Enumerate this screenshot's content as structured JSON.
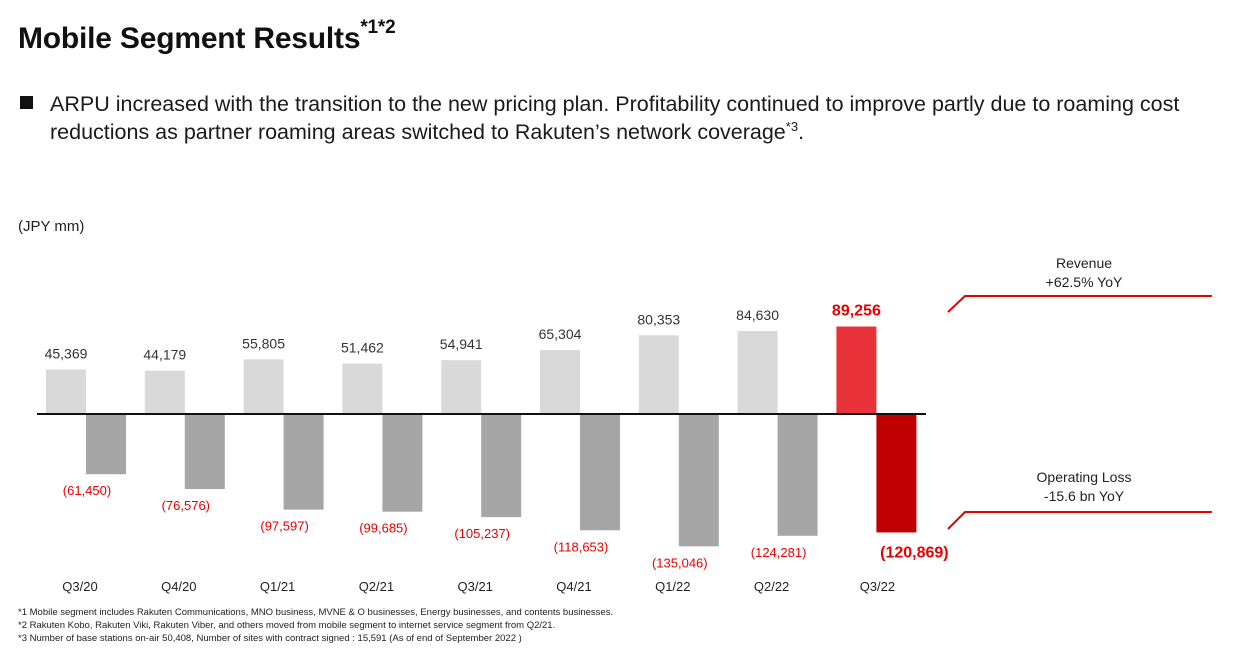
{
  "title": {
    "text": "Mobile Segment Results",
    "superscript": "*1*2"
  },
  "bullet": {
    "text": "ARPU increased with the transition to the new pricing plan. Profitability continued to improve partly due to roaming cost reductions as partner roaming areas switched to Rakuten’s network coverage",
    "superscript": "*3",
    "suffix": "."
  },
  "unit_label": "(JPY mm)",
  "colors": {
    "revenue_bar": "#d9d9d9",
    "loss_bar": "#a6a6a6",
    "highlight_revenue": "#e8333a",
    "highlight_loss": "#c00000",
    "loss_label": "#e60000",
    "axis": "#111111",
    "callout_line": "#e60000"
  },
  "callouts": {
    "revenue": {
      "line1": "Revenue",
      "line2": "+62.5% YoY"
    },
    "loss": {
      "line1": "Operating Loss",
      "line2": "-15.6 bn YoY"
    }
  },
  "chart_data": {
    "type": "bar",
    "categories": [
      "Q3/20",
      "Q4/20",
      "Q1/21",
      "Q2/21",
      "Q3/21",
      "Q4/21",
      "Q1/22",
      "Q2/22",
      "Q3/22"
    ],
    "series": [
      {
        "name": "Revenue",
        "values": [
          45369,
          44179,
          55805,
          51462,
          54941,
          65304,
          80353,
          84630,
          89256
        ],
        "labels": [
          "45,369",
          "44,179",
          "55,805",
          "51,462",
          "54,941",
          "65,304",
          "80,353",
          "84,630",
          "89,256"
        ]
      },
      {
        "name": "Operating Loss",
        "values": [
          -61450,
          -76576,
          -97597,
          -99685,
          -105237,
          -118653,
          -135046,
          -124281,
          -120869
        ],
        "labels": [
          "(61,450)",
          "(76,576)",
          "(97,597)",
          "(99,685)",
          "(105,237)",
          "(118,653)",
          "(135,046)",
          "(124,281)",
          "(120,869)"
        ]
      }
    ],
    "highlight_category": "Q3/22",
    "ylabel": "(JPY mm)",
    "grid": false
  },
  "footnotes": [
    "*1 Mobile segment includes Rakuten Communications, MNO business, MVNE & O businesses, Energy businesses, and contents businesses.",
    "*2 Rakuten Kobo, Rakuten Viki, Rakuten Viber, and others moved from mobile segment to internet service segment from Q2/21.",
    "*3 Number of base stations on-air 50,408,  Number of sites with contract signed : 15,591 (As of end of September 2022 )"
  ]
}
